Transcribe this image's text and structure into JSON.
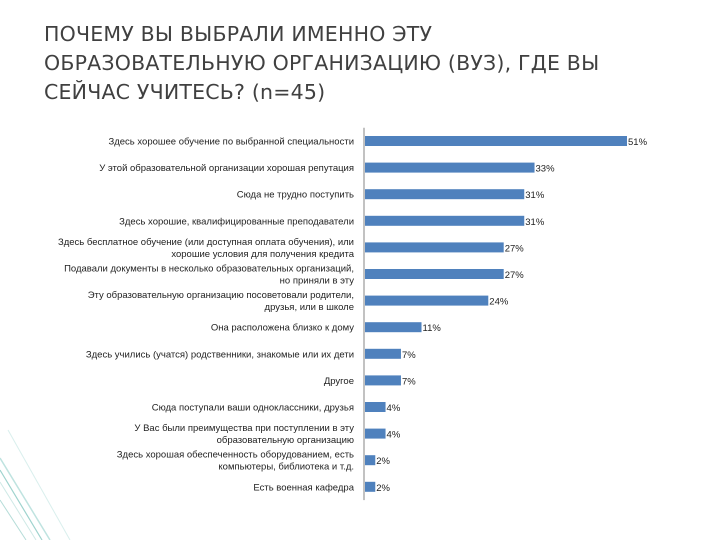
{
  "title": "ПОЧЕМУ ВЫ ВЫБРАЛИ ИМЕННО ЭТУ\nОБРАЗОВАТЕЛЬНУЮ ОРГАНИЗАЦИЮ (ВУЗ), ГДЕ ВЫ\nСЕЙЧАС УЧИТЕСЬ? (n=45)",
  "chart_data": {
    "type": "bar",
    "orientation": "horizontal",
    "title": "ПОЧЕМУ ВЫ ВЫБРАЛИ ИМЕННО ЭТУ ОБРАЗОВАТЕЛЬНУЮ ОРГАНИЗАЦИЮ (ВУЗ), ГДЕ ВЫ СЕЙЧАС УЧИТЕСЬ? (n=45)",
    "categories": [
      [
        "Здесь хорошее обучение по выбранной специальности"
      ],
      [
        "У этой образовательной организации хорошая репутация"
      ],
      [
        "Сюда не трудно поступить"
      ],
      [
        "Здесь хорошие, квалифицированные преподаватели"
      ],
      [
        "Здесь бесплатное обучение (или доступная оплата обучения), или",
        "хорошие условия для получения кредита"
      ],
      [
        "Подавали документы в несколько образовательных организаций,",
        "но приняли в эту"
      ],
      [
        "Эту образовательную организацию посоветовали родители,",
        "друзья, или в школе"
      ],
      [
        "Она расположена близко к дому"
      ],
      [
        "Здесь учились (учатся) родственники, знакомые или их дети"
      ],
      [
        "Другое"
      ],
      [
        "Сюда поступали ваши одноклассники, друзья"
      ],
      [
        "У Вас были преимущества при поступлении в эту",
        "образовательную организацию"
      ],
      [
        "Здесь хорошая обеспеченность оборудованием, есть",
        "компьютеры, библиотека и т.д."
      ],
      [
        "Есть военная кафедра"
      ]
    ],
    "values": [
      51,
      33,
      31,
      31,
      27,
      27,
      24,
      11,
      7,
      7,
      4,
      4,
      2,
      2
    ],
    "value_labels": [
      "51%",
      "33%",
      "31%",
      "31%",
      "27%",
      "27%",
      "24%",
      "11%",
      "7%",
      "7%",
      "4%",
      "4%",
      "2%",
      "2%"
    ],
    "unit": "%",
    "xlim": [
      0,
      51
    ],
    "bar_color": "#4f81bd",
    "grid": false,
    "legend": "none"
  }
}
